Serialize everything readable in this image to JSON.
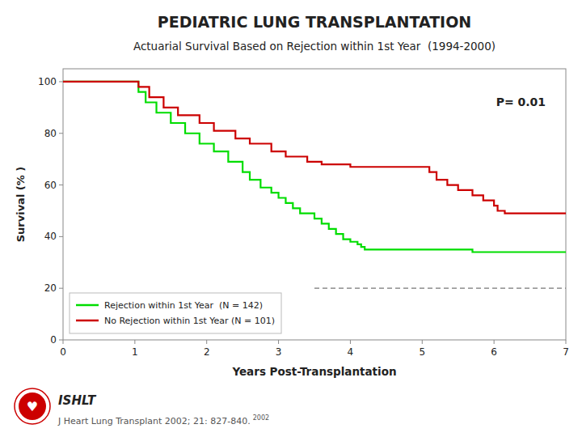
{
  "chart_data": {
    "type": "step",
    "title": "PEDIATRIC LUNG TRANSPLANTATION",
    "subtitle": "Actuarial Survival Based on Rejection within 1st Year  (1994-2000)",
    "x_label": "Years Post-Transplantation",
    "y_label": "Survival (% )",
    "xlim": [
      0,
      7
    ],
    "ylim": [
      0,
      105
    ],
    "xticks": [
      0,
      1,
      2,
      3,
      4,
      5,
      6,
      7
    ],
    "yticks": [
      0,
      20,
      40,
      60,
      80,
      100
    ],
    "grid": false,
    "legend": "lower left",
    "series": [
      {
        "name": "Rejection within 1st Year  (N = 142)",
        "color": "#00dd00",
        "x": [
          0,
          1.0,
          1.05,
          1.15,
          1.3,
          1.5,
          1.7,
          1.9,
          2.1,
          2.3,
          2.5,
          2.6,
          2.75,
          2.9,
          3.0,
          3.1,
          3.2,
          3.3,
          3.5,
          3.6,
          3.7,
          3.8,
          3.9,
          4.0,
          4.1,
          4.15,
          4.2,
          4.3,
          5.6,
          5.7,
          6.0,
          7.0
        ],
        "values": [
          100,
          100,
          96,
          92,
          88,
          84,
          80,
          76,
          73,
          69,
          65,
          62,
          59,
          57,
          55,
          53,
          51,
          49,
          47,
          45,
          43,
          41,
          39,
          38,
          37,
          36,
          35,
          35,
          35,
          34,
          34,
          34
        ]
      },
      {
        "name": "No Rejection within 1st Year (N = 101)",
        "color": "#cc0000",
        "x": [
          0,
          1.0,
          1.05,
          1.2,
          1.4,
          1.6,
          1.9,
          2.1,
          2.4,
          2.6,
          2.9,
          3.1,
          3.4,
          3.6,
          4.0,
          4.5,
          5.0,
          5.1,
          5.2,
          5.35,
          5.5,
          5.7,
          5.85,
          6.0,
          6.05,
          6.15,
          6.3,
          7.0
        ],
        "values": [
          100,
          100,
          98,
          94,
          90,
          87,
          84,
          81,
          78,
          76,
          73,
          71,
          69,
          68,
          67,
          67,
          67,
          65,
          62,
          60,
          58,
          56,
          54,
          52,
          50,
          49,
          49,
          49
        ]
      }
    ],
    "reference_line": {
      "y": 20,
      "x_start": 3.5,
      "x_end": 7.0,
      "line_style": "dashed"
    },
    "annotations": [
      {
        "text": "P= 0.01"
      }
    ],
    "logo_symbol": "♥",
    "logo_text": "ISHLT",
    "source": "J Heart Lung Transplant 2002; 21: 827-840.",
    "source_superscript": "2002"
  }
}
